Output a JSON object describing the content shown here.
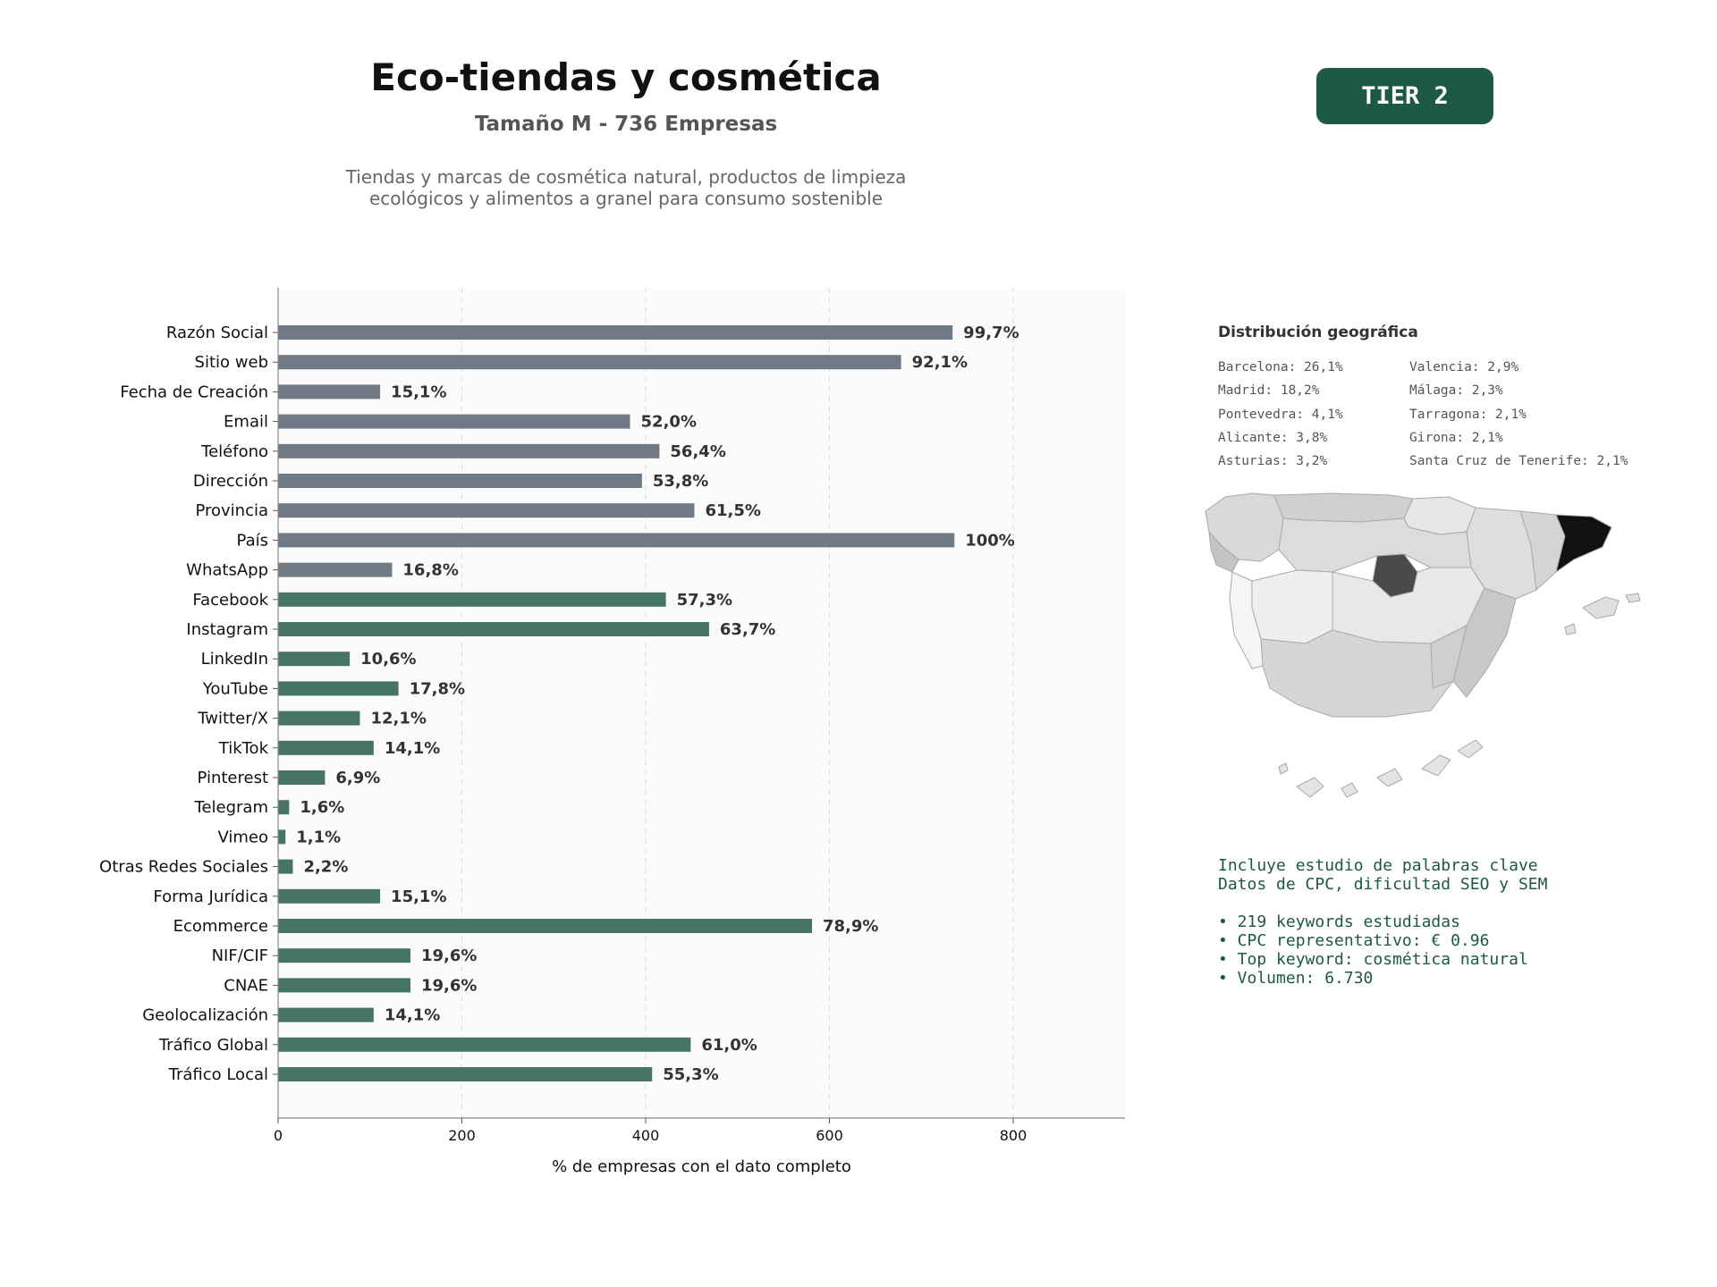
{
  "header": {
    "title": "Eco-tiendas y cosmética",
    "subtitle": "Tamaño M - 736 Empresas",
    "description_line1": "Tiendas y marcas de cosmética natural, productos de limpieza",
    "description_line2": "ecológicos y alimentos a granel para consumo sostenible",
    "tier_badge": "TIER 2"
  },
  "colors": {
    "gray_bar": "#6f7a84",
    "green_bar": "#467564",
    "brand_green": "#1e5945"
  },
  "chart_data": {
    "type": "bar",
    "orientation": "horizontal",
    "xlabel": "% de empresas con el dato completo",
    "xlim": [
      0,
      920
    ],
    "xticks": [
      0,
      200,
      400,
      600,
      800
    ],
    "grid": "vertical dashed",
    "categories": [
      "Razón Social",
      "Sitio web",
      "Fecha de Creación",
      "Email",
      "Teléfono",
      "Dirección",
      "Provincia",
      "País",
      "WhatsApp",
      "Facebook",
      "Instagram",
      "LinkedIn",
      "YouTube",
      "Twitter/X",
      "TikTok",
      "Pinterest",
      "Telegram",
      "Vimeo",
      "Otras Redes Sociales",
      "Forma Jurídica",
      "Ecommerce",
      "NIF/CIF",
      "CNAE",
      "Geolocalización",
      "Tráfico Global",
      "Tráfico Local"
    ],
    "values": [
      734,
      678,
      111,
      383,
      415,
      396,
      453,
      736,
      124,
      422,
      469,
      78,
      131,
      89,
      104,
      51,
      12,
      8,
      16,
      111,
      581,
      144,
      144,
      104,
      449,
      407
    ],
    "labels": [
      "99,7%",
      "92,1%",
      "15,1%",
      "52,0%",
      "56,4%",
      "53,8%",
      "61,5%",
      "100%",
      "16,8%",
      "57,3%",
      "63,7%",
      "10,6%",
      "17,8%",
      "12,1%",
      "14,1%",
      "6,9%",
      "1,6%",
      "1,1%",
      "2,2%",
      "15,1%",
      "78,9%",
      "19,6%",
      "19,6%",
      "14,1%",
      "61,0%",
      "55,3%"
    ],
    "groups": [
      "gray",
      "gray",
      "gray",
      "gray",
      "gray",
      "gray",
      "gray",
      "gray",
      "gray",
      "green",
      "green",
      "green",
      "green",
      "green",
      "green",
      "green",
      "green",
      "green",
      "green",
      "green",
      "green",
      "green",
      "green",
      "green",
      "green",
      "green"
    ]
  },
  "geo": {
    "title": "Distribución geográfica",
    "left": [
      "Barcelona: 26,1%",
      "Madrid: 18,2%",
      "Pontevedra: 4,1%",
      "Alicante: 3,8%",
      "Asturias: 3,2%"
    ],
    "right": [
      "Valencia: 2,9%",
      "Málaga: 2,3%",
      "Tarragona: 2,1%",
      "Girona: 2,1%",
      "Santa Cruz de Tenerife: 2,1%"
    ]
  },
  "info": {
    "line1": "Incluye estudio de palabras clave",
    "line2": "Datos de CPC, dificultad SEO y SEM",
    "bullets": [
      "• 219 keywords estudiadas",
      "• CPC representativo: € 0.96",
      "• Top keyword: cosmética natural",
      "• Volumen: 6.730"
    ]
  }
}
